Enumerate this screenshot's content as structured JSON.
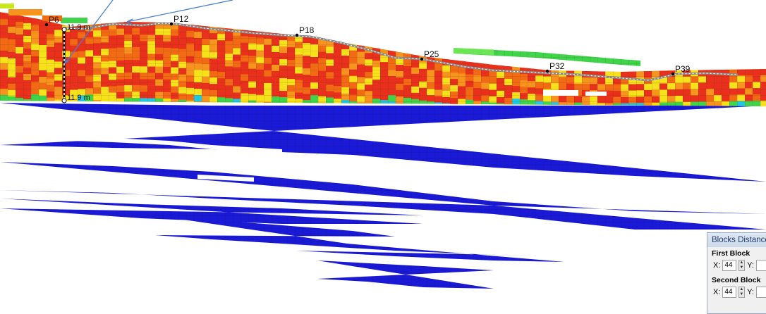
{
  "section": {
    "points": [
      {
        "label": "P6"
      },
      {
        "label": "P12"
      },
      {
        "label": "P18"
      },
      {
        "label": "P25"
      },
      {
        "label": "P32"
      },
      {
        "label": "P39"
      }
    ],
    "measure_top": "11.9 m",
    "measure_bottom": "11.9 m"
  },
  "colors": {
    "deep_red": "#e8301c",
    "orange": "#f26a14",
    "light_orange": "#f7941d",
    "yellow": "#f5e21a",
    "green": "#3fd44a",
    "cyan": "#21c8e0",
    "blue": "#1a1ad6"
  },
  "dialog": {
    "title": "Blocks Distance",
    "first_block_label": "First Block",
    "first_x_label": "X:",
    "first_x_value": "44",
    "first_y_label": "Y:",
    "second_block_label": "Second Block",
    "second_x_label": "X:",
    "second_x_value": "44",
    "second_y_label": "Y:"
  }
}
